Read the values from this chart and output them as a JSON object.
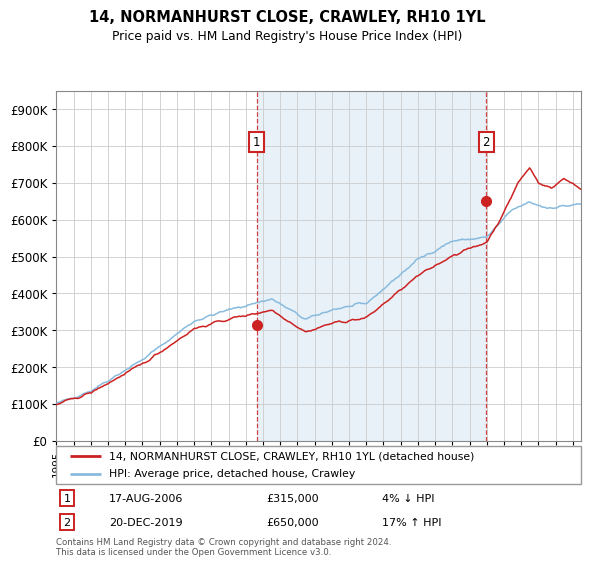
{
  "title": "14, NORMANHURST CLOSE, CRAWLEY, RH10 1YL",
  "subtitle": "Price paid vs. HM Land Registry's House Price Index (HPI)",
  "legend_line1": "14, NORMANHURST CLOSE, CRAWLEY, RH10 1YL (detached house)",
  "legend_line2": "HPI: Average price, detached house, Crawley",
  "annotation1": {
    "num": "1",
    "date": "17-AUG-2006",
    "price": "£315,000",
    "pct": "4% ↓ HPI"
  },
  "annotation2": {
    "num": "2",
    "date": "20-DEC-2019",
    "price": "£650,000",
    "pct": "17% ↑ HPI"
  },
  "footer": "Contains HM Land Registry data © Crown copyright and database right 2024.\nThis data is licensed under the Open Government Licence v3.0.",
  "price_color": "#cc2222",
  "hpi_color": "#88bbdd",
  "annotation_color": "#cc2222",
  "bg_shade_color": "#e8f0f8",
  "ylim": [
    0,
    950000
  ],
  "yticks": [
    0,
    100000,
    200000,
    300000,
    400000,
    500000,
    600000,
    700000,
    800000,
    900000
  ],
  "purchase1_x": 2006.63,
  "purchase1_y": 315000,
  "purchase2_x": 2019.97,
  "purchase2_y": 650000,
  "vline1_x": 2006.63,
  "vline2_x": 2019.97,
  "xmin": 1995.0,
  "xmax": 2025.5
}
